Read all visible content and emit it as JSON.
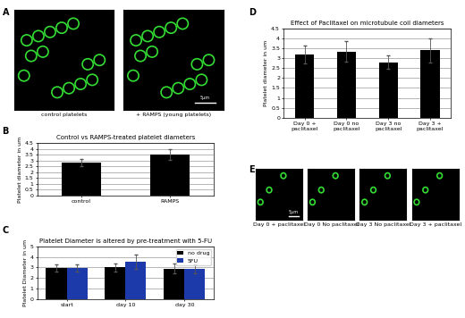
{
  "chart_data": [
    {
      "panel": "B",
      "type": "bar",
      "title": "Control vs RAMPS-treated platelet diameters",
      "y_label": "Platelet diameter in um",
      "categories": [
        "control",
        "RAMPS"
      ],
      "values": [
        2.85,
        3.5
      ],
      "errors": [
        0.3,
        0.45
      ],
      "color": "#000000",
      "ylim": [
        0,
        4.5
      ],
      "yticks": [
        0,
        0.5,
        1,
        1.5,
        2,
        2.5,
        3,
        3.5,
        4,
        4.5
      ],
      "grid": true
    },
    {
      "panel": "C",
      "type": "bar",
      "title": "Platelet Diameter is altered by pre-treatment with 5-FU",
      "y_label": "Platelet Diameter in um",
      "categories": [
        "start",
        "day 10",
        "day 30"
      ],
      "series": [
        {
          "name": "no drug",
          "color": "#000000",
          "values": [
            2.95,
            3.0,
            2.9
          ],
          "errors": [
            0.35,
            0.4,
            0.5
          ]
        },
        {
          "name": "5FU",
          "color": "#1c3aa9",
          "values": [
            2.95,
            3.55,
            2.85
          ],
          "errors": [
            0.35,
            0.7,
            0.45
          ]
        }
      ],
      "ylim": [
        0,
        5
      ],
      "yticks": [
        0,
        1,
        2,
        3,
        4,
        5
      ],
      "grid": true,
      "legend": "upper right"
    },
    {
      "panel": "D",
      "type": "bar",
      "title": "Effect of Paclitaxel on microtubule coil diameters",
      "y_label": "Platelet diameter in um",
      "categories": [
        "Day 0 + paclitaxel",
        "Day 0 no paclitaxel",
        "Day 3 no paclitaxel",
        "Day 3 + paclitaxel"
      ],
      "values": [
        3.2,
        3.35,
        2.8,
        3.4
      ],
      "errors": [
        0.45,
        0.5,
        0.35,
        0.6
      ],
      "color": "#000000",
      "ylim": [
        0,
        4.5
      ],
      "yticks": [
        0,
        0.5,
        1,
        1.5,
        2,
        2.5,
        3,
        3.5,
        4,
        4.5
      ],
      "grid": true
    }
  ],
  "images": [
    {
      "panel": "A",
      "captions": [
        "control platelets",
        "+ RAMPS (young platelets)"
      ],
      "scale_bar": "5µm"
    },
    {
      "panel": "E",
      "captions": [
        "Day 0 + paclitaxel",
        "Day 0 No paclitaxel",
        "Day 3 No paclitaxel",
        "Day 3 + paclitaxel"
      ],
      "scale_bar": "5µm"
    }
  ]
}
